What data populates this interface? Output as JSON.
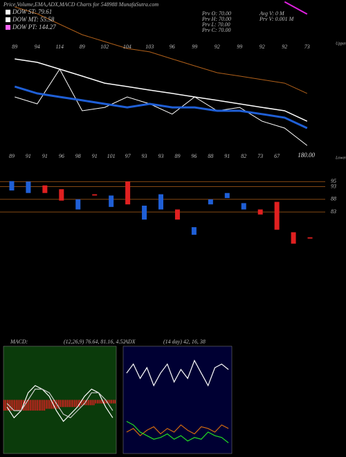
{
  "chart_data": [
    {
      "type": "line",
      "title": "Price,Volume,EMA,ADX,MACD Charts for 548988 MunafaSutra.com",
      "categories": [
        "89",
        "94",
        "114",
        "89",
        "102",
        "104",
        "103",
        "96",
        "99",
        "92",
        "99",
        "92",
        "92",
        "73"
      ],
      "ylim": [
        170,
        260
      ],
      "series": [
        {
          "name": "Price",
          "color": "#ffffff",
          "width": 1,
          "values": [
            205.2,
            201.3,
            220.9,
            197.4,
            199.3,
            205.2,
            201.3,
            195.5,
            205.2,
            197.4,
            199.3,
            191.5,
            187.6,
            177.8
          ]
        },
        {
          "name": "EMA Upper",
          "color": "#ffffff",
          "width": 1.5,
          "values": [
            226.7,
            224.8,
            220.9,
            217,
            213,
            211.1,
            209.1,
            207.2,
            205.2,
            203.3,
            201.3,
            199.3,
            197.4,
            191.5
          ]
        },
        {
          "name": "EMA Mid",
          "color": "#1f5fd6",
          "width": 3,
          "values": [
            211.1,
            207.2,
            205.2,
            203.3,
            201.3,
            199.3,
            201.3,
            199.3,
            199.3,
            197.4,
            197.4,
            195.5,
            193.5,
            187.6
          ]
        },
        {
          "name": "EMA Long",
          "color": "#b0601a",
          "width": 1,
          "values": [
            256.1,
            252.2,
            246.3,
            240.4,
            236.5,
            232.6,
            230.7,
            226.7,
            222.8,
            218.9,
            217,
            215,
            213,
            207.2
          ]
        },
        {
          "name": "EMA Top",
          "color": "#e020e0",
          "width": 2,
          "values": [
            null,
            null,
            null,
            null,
            null,
            null,
            null,
            null,
            null,
            null,
            null,
            null,
            259,
            252
          ]
        }
      ],
      "legend": [
        {
          "label": "DOW ST: 79.61",
          "color": "#ffffff"
        },
        {
          "label": "DOW MT: 55.58",
          "color": "#ffffff"
        },
        {
          "label": "DOW PT: 144.27",
          "color": "#ff66ff"
        }
      ],
      "info": [
        "Prv O: 70.00",
        "Prv H: 70.00",
        "Prv L: 70.00",
        "Prv C: 70.00",
        "Avg V: 0 M",
        "Prv V: 0.001 M"
      ],
      "annotations": [
        "180.00",
        "Lower",
        "Upper"
      ]
    },
    {
      "type": "candlestick",
      "categories": [
        "89",
        "91",
        "91",
        "96",
        "98",
        "91",
        "101",
        "97",
        "93",
        "93",
        "89",
        "96",
        "88",
        "91",
        "82",
        "73",
        "67",
        null,
        null
      ],
      "open": [
        91.5,
        90.5,
        93.5,
        92,
        84,
        90,
        85,
        95,
        80,
        84,
        84,
        74,
        86,
        88.5,
        84,
        84,
        87,
        75,
        73
      ],
      "close": [
        95.2,
        95,
        90.5,
        87.5,
        88,
        89.5,
        89.5,
        86,
        85.5,
        90,
        80,
        77,
        88,
        90.5,
        86.5,
        82,
        76,
        70.5,
        72.5
      ],
      "up_color": "#1f5fd6",
      "down_color": "#e02020",
      "grid_color": "#b0601a",
      "ylim": [
        68,
        100
      ],
      "yticks": [
        95,
        93,
        88,
        83
      ]
    },
    {
      "type": "macd",
      "title": "MACD:",
      "subtitle": "(12,26,9) 76.64, 81.16, 4.52",
      "background": "#0b3b0b",
      "ylim": [
        -15,
        15
      ],
      "series": [
        {
          "name": "MACD",
          "color": "#ffffff",
          "values": [
            -2,
            -5,
            -3,
            2,
            4,
            3,
            1,
            -3,
            -6,
            -4,
            -2,
            1,
            3,
            2,
            -2,
            -5
          ]
        },
        {
          "name": "Signal",
          "color": "#cccccc",
          "values": [
            -1,
            -3,
            -3,
            0,
            3,
            3,
            2,
            -1,
            -4,
            -5,
            -3,
            -1,
            2,
            2,
            0,
            -3
          ]
        },
        {
          "name": "Histogram",
          "color": "#e02020",
          "values": [
            -3,
            -3,
            -3,
            -3,
            -3,
            -3,
            -2.5,
            -2.5,
            -2,
            -2,
            -2,
            -1.5,
            -1.5,
            -1,
            -1,
            -1
          ]
        }
      ]
    },
    {
      "type": "adx",
      "title": "ADX",
      "subtitle": "(14 day) 42, 16, 38",
      "background": "#000033",
      "ylim": [
        0,
        60
      ],
      "series": [
        {
          "name": "ADX",
          "color": "#ffffff",
          "values": [
            45,
            50,
            42,
            48,
            38,
            45,
            50,
            40,
            47,
            42,
            52,
            45,
            38,
            48,
            50,
            47
          ]
        },
        {
          "name": "+DI",
          "color": "#d06a10",
          "values": [
            12,
            14,
            10,
            13,
            15,
            11,
            14,
            12,
            16,
            13,
            11,
            15,
            14,
            12,
            16,
            14
          ]
        },
        {
          "name": "-DI",
          "color": "#22dd22",
          "values": [
            18,
            16,
            12,
            10,
            8,
            9,
            11,
            8,
            10,
            7,
            9,
            8,
            12,
            10,
            9,
            6
          ]
        }
      ]
    }
  ]
}
